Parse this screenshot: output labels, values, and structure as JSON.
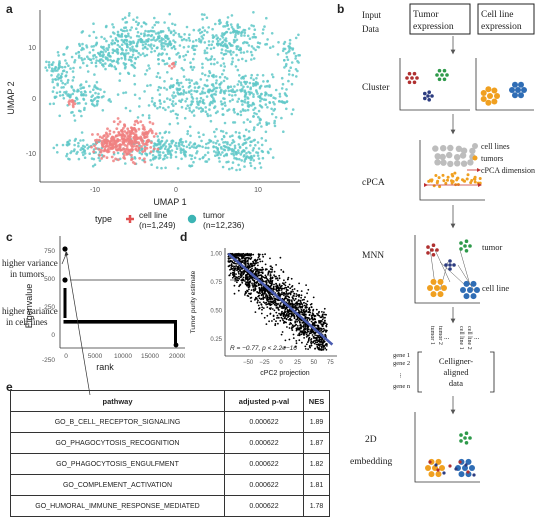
{
  "panels": {
    "a": "a",
    "b": "b",
    "c": "c",
    "d": "d",
    "e": "e"
  },
  "umap": {
    "xlabel": "UMAP 1",
    "ylabel": "UMAP 2",
    "x_ticks": [
      "-10",
      "0",
      "10"
    ],
    "y_ticks": [
      "10",
      "0",
      "-10"
    ],
    "legend_title": "type",
    "legend_items": [
      {
        "label": "cell line",
        "count": "(n=1,249)",
        "color": "#f08080"
      },
      {
        "label": "tumor",
        "count": "(n=12,236)",
        "color": "#5fc8c8"
      }
    ]
  },
  "flow": {
    "input_label_1": "Input",
    "input_label_2": "Data",
    "box_tumor_1": "Tumor",
    "box_tumor_2": "expression",
    "box_cell_1": "Cell line",
    "box_cell_2": "expression",
    "step_cluster": "Cluster",
    "step_cpca": "cPCA",
    "step_mnn": "MNN",
    "step_2d_1": "2D",
    "step_2d_2": "embedding",
    "cpca_legend": [
      "cell lines",
      "tumors",
      "cPCA dimension"
    ],
    "mnn_tumor": "tumor",
    "mnn_cell_line": "cell line",
    "matrix_cols": [
      "tumor 1",
      "tumor 2",
      "cell line 1",
      "cell line 2"
    ],
    "matrix_rows": [
      "gene 1",
      "gene 2",
      "gene n"
    ],
    "matrix_dots": "...",
    "matrix_center": [
      "Celligner-",
      "aligned",
      "data"
    ],
    "colors": {
      "tumor_orange": "#f0a020",
      "cell_blue": "#2f6db5",
      "red": "#b03030",
      "green": "#2e9a4a",
      "navy": "#2c3c80",
      "gray": "#bdbdbd"
    }
  },
  "eigen": {
    "ylabel": "Eigenvalue",
    "xlabel": "rank",
    "y_ticks": [
      "750",
      "500",
      "250",
      "0",
      "-250"
    ],
    "x_ticks": [
      "0",
      "5000",
      "10000",
      "15000",
      "20000"
    ],
    "annot_top": [
      "higher variance",
      "in tumors"
    ],
    "annot_bottom": [
      "higher variance",
      "in cell lines"
    ]
  },
  "chart_data": {
    "type": "scatter",
    "xlabel": "cPC2 projection",
    "ylabel": "Tumor purity estimate",
    "x_ticks": [
      "-50",
      "-25",
      "0",
      "25",
      "50",
      "75"
    ],
    "y_ticks": [
      "1.00",
      "0.75",
      "0.50",
      "0.25"
    ],
    "xlim": [
      -85,
      85
    ],
    "ylim": [
      0.1,
      1.05
    ],
    "annotation": "R = −0.77, p < 2.2e−16",
    "fit_line": {
      "x": [
        -80,
        78
      ],
      "y": [
        1.0,
        0.2
      ]
    },
    "point_color": "#000000",
    "line_color": "#4a5cb0"
  },
  "table": {
    "headers": [
      "pathway",
      "adjusted p-val",
      "NES"
    ],
    "rows": [
      [
        "GO_B_CELL_RECEPTOR_SIGNALING",
        "0.000622",
        "1.89"
      ],
      [
        "GO_PHAGOCYTOSIS_RECOGNITION",
        "0.000622",
        "1.87"
      ],
      [
        "GO_PHAGOCYTOSIS_ENGULFMENT",
        "0.000622",
        "1.82"
      ],
      [
        "GO_COMPLEMENT_ACTIVATION",
        "0.000622",
        "1.81"
      ],
      [
        "GO_HUMORAL_IMMUNE_RESPONSE_MEDIATED",
        "0.000622",
        "1.78"
      ]
    ]
  }
}
